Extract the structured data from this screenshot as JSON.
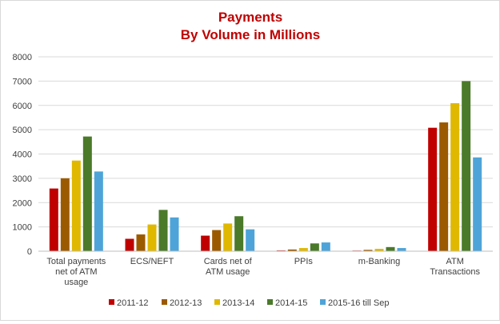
{
  "chart_data": {
    "type": "bar",
    "title_lines": [
      "Payments",
      "By Volume in Millions"
    ],
    "xlabel": "",
    "ylabel": "",
    "ylim": [
      0,
      8000
    ],
    "yticks": [
      0,
      1000,
      2000,
      3000,
      4000,
      5000,
      6000,
      7000,
      8000
    ],
    "grid": true,
    "legend_position": "bottom",
    "categories": [
      [
        "Total payments",
        "net of ATM",
        "usage"
      ],
      [
        "ECS/NEFT"
      ],
      [
        "Cards net of",
        "ATM  usage"
      ],
      [
        "PPIs"
      ],
      [
        "m-Banking"
      ],
      [
        "ATM",
        "Transactions"
      ]
    ],
    "series": [
      {
        "name": "2011-12",
        "color": "#c00000",
        "values": [
          2580,
          510,
          640,
          30,
          25,
          5080
        ]
      },
      {
        "name": "2012-13",
        "color": "#9c5a00",
        "values": [
          3000,
          690,
          870,
          70,
          55,
          5300
        ]
      },
      {
        "name": "2013-14",
        "color": "#e0b800",
        "values": [
          3730,
          1100,
          1140,
          130,
          95,
          6090
        ]
      },
      {
        "name": "2014-15",
        "color": "#4b7a2a",
        "values": [
          4720,
          1700,
          1440,
          320,
          170,
          7000
        ]
      },
      {
        "name": "2015-16 till Sep",
        "color": "#4ea4d8",
        "values": [
          3280,
          1390,
          900,
          360,
          130,
          3860
        ]
      }
    ]
  }
}
